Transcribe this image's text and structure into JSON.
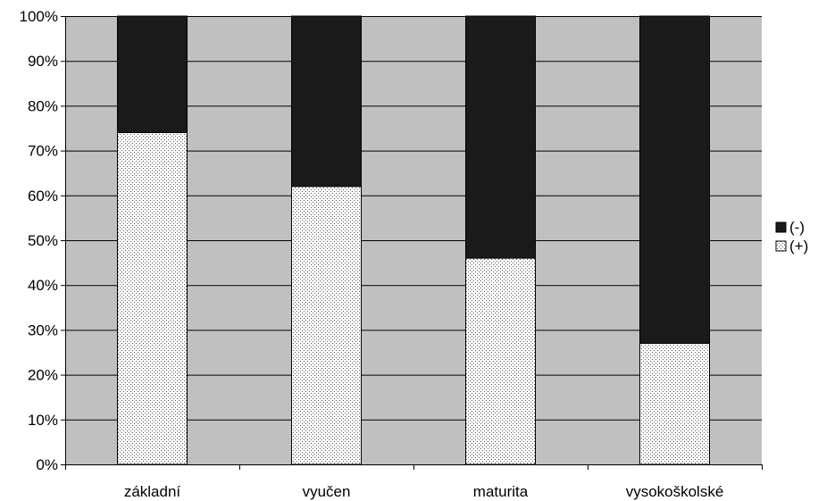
{
  "chart_data": {
    "type": "bar",
    "stacked": "percent",
    "categories": [
      "základní",
      "vyučen",
      "maturita",
      "vysokoškolské"
    ],
    "series": [
      {
        "name": "(+)",
        "values": [
          74,
          62,
          46,
          27
        ],
        "pattern": "dotted"
      },
      {
        "name": "(-)",
        "values": [
          26,
          38,
          54,
          73
        ],
        "pattern": "solid"
      }
    ],
    "ylim": [
      0,
      100
    ],
    "yticks": [
      "0%",
      "10%",
      "20%",
      "30%",
      "40%",
      "50%",
      "60%",
      "70%",
      "80%",
      "90%",
      "100%"
    ],
    "grid": true,
    "legend_position": "right",
    "colors": {
      "plot_background": "#c0c0c0",
      "negative_fill": "#1a1a1a",
      "positive_fill": "#ffffff",
      "positive_dots": "#555555",
      "gridline": "#000000"
    }
  }
}
